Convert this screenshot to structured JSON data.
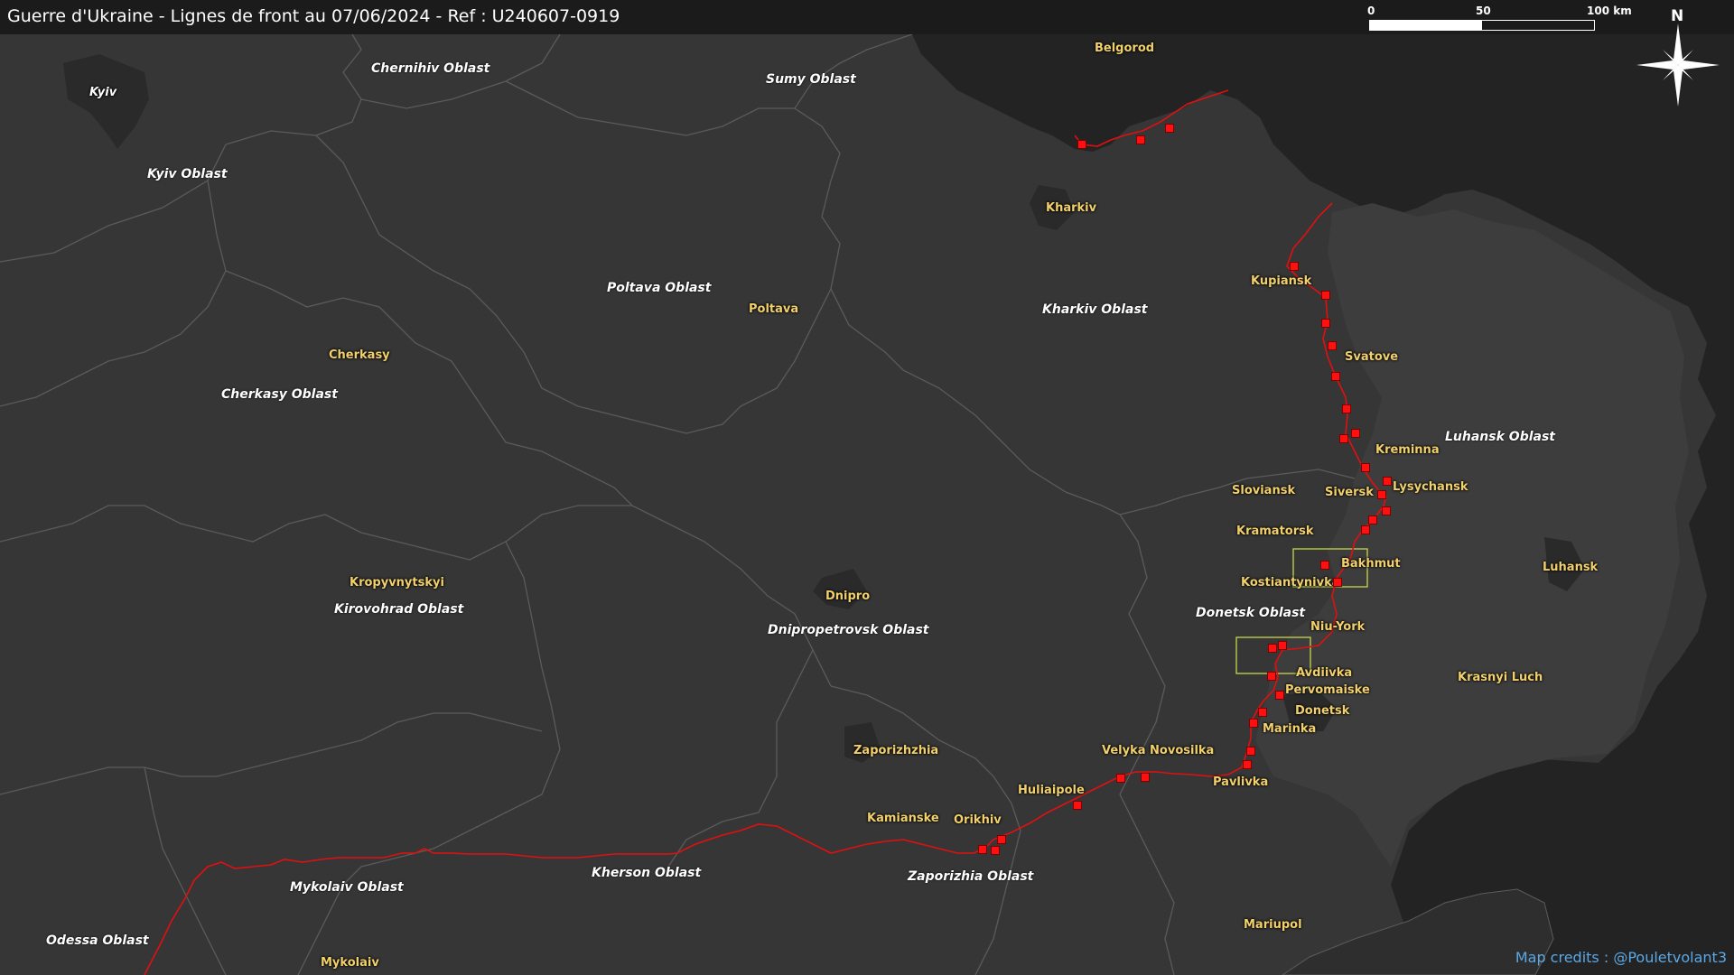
{
  "title": "Guerre d'Ukraine - Lignes de front au 07/06/2024 - Ref : U240607-0919",
  "scale": {
    "labels": [
      "0",
      "50",
      "100 km"
    ]
  },
  "north_label": "N",
  "credits": "Map credits : @Pouletvolant3",
  "colors": {
    "background": "#2a2a2a",
    "russia": "#232323",
    "borders": "#5b5b5b",
    "front_line": "#e01010",
    "markers": "#ff1010",
    "city_labels": "#f2d06b",
    "oblast_labels": "#ffffff",
    "highlight_box": "#c8d64b",
    "credits": "#5aa8e6"
  },
  "oblasts": [
    "Chernihiv Oblast",
    "Sumy Oblast",
    "Kyiv Oblast",
    "Poltava Oblast",
    "Kharkiv Oblast",
    "Cherkasy Oblast",
    "Luhansk Oblast",
    "Donetsk Oblast",
    "Kirovohrad Oblast",
    "Dnipropetrovsk Oblast",
    "Kherson Oblast",
    "Zaporizhia Oblast",
    "Mykolaiv Oblast",
    "Odessa Oblast"
  ],
  "cities": [
    "Kyiv",
    "Belgorod",
    "Kharkiv",
    "Kupiansk",
    "Poltava",
    "Svatove",
    "Cherkasy",
    "Kreminna",
    "Lysychansk",
    "Sloviansk",
    "Siversk",
    "Kramatorsk",
    "Bakhmut",
    "Kostiantynivka",
    "Luhansk",
    "Kropyvnytskyi",
    "Dnipro",
    "Niu-York",
    "Avdiivka",
    "Krasnyi Luch",
    "Pervomaiske",
    "Donetsk",
    "Marinka",
    "Zaporizhzhia",
    "Velyka Novosilka",
    "Pavlivka",
    "Huliaipole",
    "Kamianske",
    "Orikhiv",
    "Mariupol",
    "Mykolaiv"
  ],
  "legend_icons": [
    "compass-rose-icon"
  ]
}
